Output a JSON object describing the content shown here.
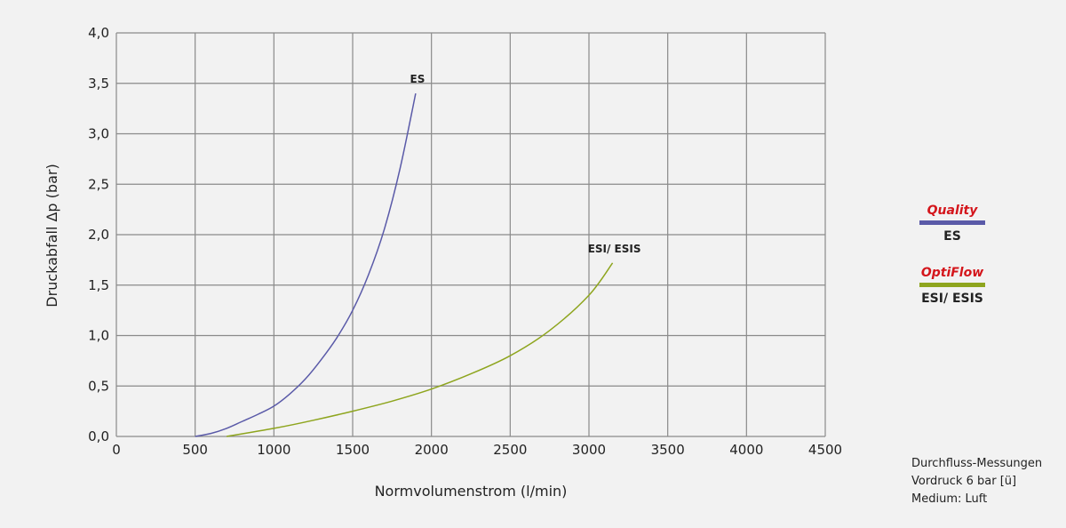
{
  "chart_data": {
    "type": "line",
    "title": "",
    "xlabel": "Normvolumenstrom (l/min)",
    "ylabel": "Druckabfall  Δp (bar)",
    "xlim": [
      0,
      4500
    ],
    "ylim": [
      0,
      4.0
    ],
    "x_ticks": [
      "0",
      "500",
      "1000",
      "1500",
      "2000",
      "2500",
      "3000",
      "3500",
      "4000",
      "4500"
    ],
    "y_ticks": [
      "0,0",
      "0,5",
      "1,0",
      "1,5",
      "2,0",
      "2,5",
      "3,0",
      "3,5",
      "4,0"
    ],
    "grid": true,
    "legend_position": "right",
    "series": [
      {
        "name": "ES",
        "color": "#5a5aa8",
        "x": [
          500,
          600,
          700,
          800,
          900,
          1000,
          1100,
          1200,
          1300,
          1400,
          1500,
          1600,
          1700,
          1800,
          1900
        ],
        "y": [
          0.0,
          0.03,
          0.08,
          0.15,
          0.22,
          0.3,
          0.42,
          0.57,
          0.76,
          0.98,
          1.25,
          1.6,
          2.05,
          2.65,
          3.4
        ]
      },
      {
        "name": "ESI/ ESIS",
        "color": "#8ea51e",
        "x": [
          700,
          1000,
          1250,
          1500,
          1750,
          2000,
          2250,
          2500,
          2750,
          3000,
          3150
        ],
        "y": [
          0.0,
          0.08,
          0.16,
          0.25,
          0.35,
          0.47,
          0.62,
          0.8,
          1.05,
          1.4,
          1.72
        ]
      }
    ]
  },
  "legend": [
    {
      "title": "Quality",
      "name": "ES",
      "color": "#5a5aa8"
    },
    {
      "title": "OptiFlow",
      "name": "ESI/ ESIS",
      "color": "#8ea51e"
    }
  ],
  "notes": [
    "Durchfluss-Messungen",
    "Vordruck 6 bar [ü]",
    "Medium: Luft"
  ]
}
